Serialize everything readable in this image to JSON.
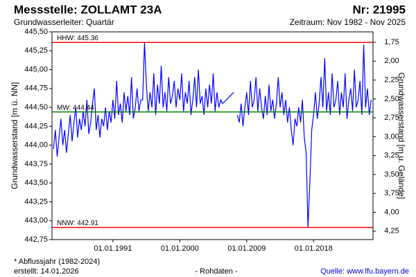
{
  "chart_data": {
    "type": "line",
    "title": "Messstelle: ZOLLAMT 23A",
    "number": "Nr: 21995",
    "subtitle": "Grundwasserleiter: Quartär",
    "period": "Zeitraum: Nov 1982 - Nov 2025",
    "ylabel": "Grundwasserstand [m ü. NN]",
    "y2label": "Grundwasserstand [m u. Gelände]",
    "footnote": "* Abflussjahr (1982-2024)",
    "created": "erstellt:  14.01.2026",
    "center_note": "- Rohdaten -",
    "source": "Quelle: www.lfu.bayern.de",
    "xlim": [
      1982.8,
      2026.0
    ],
    "xticks": [
      {
        "value": 1991,
        "label": "01.01.1991"
      },
      {
        "value": 2000,
        "label": "01.01.2000"
      },
      {
        "value": 2009,
        "label": "01.01.2009"
      },
      {
        "value": 2018,
        "label": "01.01.2018"
      }
    ],
    "ylim": [
      442.75,
      445.5
    ],
    "yticks": [
      {
        "value": 442.75,
        "label": "442,75"
      },
      {
        "value": 443,
        "label": "443,00"
      },
      {
        "value": 443.25,
        "label": "443,25"
      },
      {
        "value": 443.5,
        "label": "443,50"
      },
      {
        "value": 443.75,
        "label": "443,75"
      },
      {
        "value": 444,
        "label": "444,00"
      },
      {
        "value": 444.25,
        "label": "444,25"
      },
      {
        "value": 444.5,
        "label": "444,50"
      },
      {
        "value": 444.75,
        "label": "444,75"
      },
      {
        "value": 445,
        "label": "445,00"
      },
      {
        "value": 445.25,
        "label": "445,25"
      },
      {
        "value": 445.5,
        "label": "445,50"
      }
    ],
    "y2lim": [
      4.362,
      1.612
    ],
    "y2ticks": [
      {
        "value": 1.75,
        "label": "1,75"
      },
      {
        "value": 2,
        "label": "2,00"
      },
      {
        "value": 2.25,
        "label": "2,25"
      },
      {
        "value": 2.5,
        "label": "2,50"
      },
      {
        "value": 2.75,
        "label": "2,75"
      },
      {
        "value": 3,
        "label": "3,00"
      },
      {
        "value": 3.25,
        "label": "3,25"
      },
      {
        "value": 3.5,
        "label": "3,50"
      },
      {
        "value": 3.75,
        "label": "3,75"
      },
      {
        "value": 4,
        "label": "4,00"
      },
      {
        "value": 4.25,
        "label": "4,25"
      }
    ],
    "reference_lines": [
      {
        "label": "HHW: 445.36",
        "value": 445.36,
        "color": "#ff0000"
      },
      {
        "label": "MW: 444.44",
        "value": 444.44,
        "color": "#008000"
      },
      {
        "label": "NNW: 442.91",
        "value": 442.91,
        "color": "#ff0000"
      }
    ],
    "x": [
      1983,
      1983.25,
      1983.5,
      1983.75,
      1984,
      1984.25,
      1984.5,
      1984.75,
      1985,
      1985.25,
      1985.5,
      1985.75,
      1986,
      1986.25,
      1986.5,
      1986.75,
      1987,
      1987.25,
      1987.5,
      1987.75,
      1988,
      1988.25,
      1988.5,
      1988.75,
      1989,
      1989.25,
      1989.5,
      1989.75,
      1990,
      1990.25,
      1990.5,
      1990.75,
      1991,
      1991.25,
      1991.5,
      1991.75,
      1992,
      1992.25,
      1992.5,
      1992.75,
      1993,
      1993.25,
      1993.5,
      1993.75,
      1994,
      1994.25,
      1994.5,
      1994.75,
      1995,
      1995.25,
      1995.5,
      1995.75,
      1996,
      1996.25,
      1996.5,
      1996.75,
      1997,
      1997.25,
      1997.5,
      1997.75,
      1998,
      1998.25,
      1998.5,
      1998.75,
      1999,
      1999.25,
      1999.5,
      1999.75,
      2000,
      2000.25,
      2000.5,
      2000.75,
      2001,
      2001.25,
      2001.5,
      2001.75,
      2002,
      2002.25,
      2002.5,
      2002.75,
      2003,
      2003.25,
      2003.5,
      2003.75,
      2004,
      2004.25,
      2004.5,
      2004.75,
      2005,
      2005.25,
      2005.5,
      2005.75,
      2007.25,
      2007.5,
      2007.75,
      2008,
      2008.25,
      2008.5,
      2008.75,
      2009,
      2009.25,
      2009.5,
      2009.75,
      2010,
      2010.25,
      2010.5,
      2010.75,
      2011,
      2011.25,
      2011.5,
      2011.75,
      2012,
      2012.25,
      2012.5,
      2012.75,
      2013,
      2013.25,
      2013.5,
      2013.75,
      2014,
      2014.25,
      2014.5,
      2014.75,
      2015,
      2015.25,
      2015.5,
      2015.75,
      2016,
      2016.25,
      2016.5,
      2016.75,
      2017,
      2017.25,
      2017.5,
      2017.75,
      2018,
      2018.25,
      2018.5,
      2018.75,
      2019,
      2019.25,
      2019.5,
      2019.75,
      2020,
      2020.25,
      2020.5,
      2020.75,
      2021,
      2021.25,
      2021.5,
      2021.75,
      2022,
      2022.25,
      2022.5,
      2022.75,
      2023,
      2023.25,
      2023.5,
      2023.75,
      2024,
      2024.25,
      2024.5,
      2024.75,
      2025,
      2025.25,
      2025.5,
      2025.75
    ],
    "series": [
      {
        "color": "#0000ff",
        "values": [
          443.95,
          444.2,
          443.85,
          444.1,
          444.35,
          444.0,
          444.2,
          443.9,
          444.15,
          444.4,
          444.05,
          444.3,
          444.5,
          444.1,
          444.35,
          444.2,
          444.45,
          444.25,
          444.6,
          444.15,
          444.3,
          444.55,
          444.75,
          444.2,
          444.4,
          444.1,
          444.35,
          444.25,
          444.5,
          444.2,
          444.45,
          444.3,
          444.6,
          444.35,
          444.85,
          444.4,
          444.55,
          444.3,
          444.7,
          444.45,
          444.65,
          444.4,
          444.9,
          444.35,
          444.5,
          444.75,
          444.45,
          444.6,
          444.6,
          445.36,
          444.8,
          444.45,
          444.7,
          444.5,
          444.95,
          444.4,
          444.8,
          444.55,
          445.05,
          444.5,
          444.7,
          444.45,
          444.9,
          444.55,
          444.65,
          444.85,
          444.5,
          444.75,
          444.6,
          444.95,
          444.45,
          444.7,
          444.55,
          444.85,
          444.4,
          444.6,
          444.9,
          444.5,
          445.0,
          444.55,
          444.65,
          444.4,
          444.75,
          444.5,
          444.8,
          444.55,
          444.95,
          444.45,
          444.7,
          444.5,
          444.6,
          444.55,
          444.7,
          null,
          444.4,
          444.3,
          444.55,
          444.25,
          444.5,
          444.7,
          444.4,
          444.85,
          444.5,
          444.6,
          444.9,
          444.45,
          444.75,
          444.5,
          444.35,
          444.65,
          444.4,
          444.8,
          444.45,
          444.6,
          444.35,
          444.55,
          444.9,
          444.5,
          444.7,
          444.4,
          444.6,
          444.3,
          444.5,
          444.2,
          444.0,
          444.35,
          444.25,
          444.5,
          444.3,
          444.6,
          444.1,
          443.9,
          442.91,
          443.5,
          444.2,
          444.4,
          444.7,
          444.35,
          444.55,
          444.9,
          444.5,
          445.15,
          444.45,
          444.7,
          444.4,
          444.95,
          444.5,
          444.6,
          444.85,
          444.4,
          444.7,
          444.5,
          444.95,
          444.35,
          444.6,
          444.75,
          444.45,
          445.0,
          444.5,
          444.6,
          444.85,
          444.4,
          445.33,
          444.5,
          444.75,
          444.4,
          444.6
        ]
      }
    ]
  }
}
